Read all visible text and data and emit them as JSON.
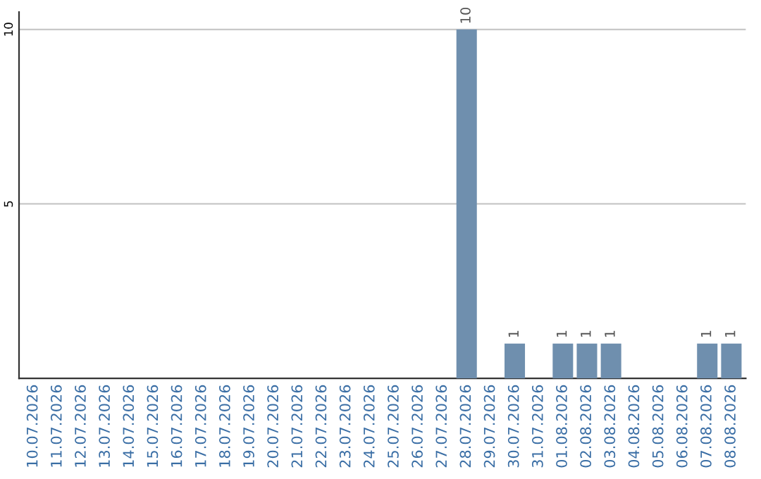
{
  "chart_data": {
    "type": "bar",
    "categories": [
      "10.07.2026",
      "11.07.2026",
      "12.07.2026",
      "13.07.2026",
      "14.07.2026",
      "15.07.2026",
      "16.07.2026",
      "17.07.2026",
      "18.07.2026",
      "19.07.2026",
      "20.07.2026",
      "21.07.2026",
      "22.07.2026",
      "23.07.2026",
      "24.07.2026",
      "25.07.2026",
      "26.07.2026",
      "27.07.2026",
      "28.07.2026",
      "29.07.2026",
      "30.07.2026",
      "31.07.2026",
      "01.08.2026",
      "02.08.2026",
      "03.08.2026",
      "04.08.2026",
      "05.08.2026",
      "06.08.2026",
      "07.08.2026",
      "08.08.2026"
    ],
    "values": [
      0,
      0,
      0,
      0,
      0,
      0,
      0,
      0,
      0,
      0,
      0,
      0,
      0,
      0,
      0,
      0,
      0,
      0,
      10,
      0,
      1,
      0,
      1,
      1,
      1,
      0,
      0,
      0,
      1,
      1
    ],
    "value_labels": [
      null,
      null,
      null,
      null,
      null,
      null,
      null,
      null,
      null,
      null,
      null,
      null,
      null,
      null,
      null,
      null,
      null,
      null,
      "10",
      null,
      "1",
      null,
      "1",
      "1",
      "1",
      null,
      null,
      null,
      "1",
      "1"
    ],
    "color": "#6f8fae",
    "ylim": [
      0,
      10.5
    ],
    "yticks": [
      {
        "value": 0,
        "label": null
      },
      5,
      10
    ],
    "grid": "y"
  }
}
